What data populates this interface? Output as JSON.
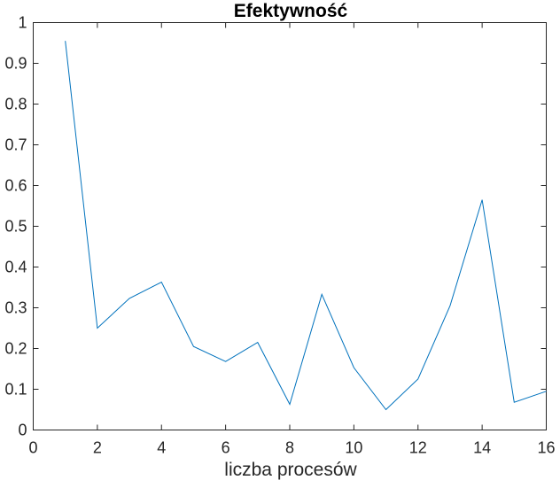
{
  "chart_data": {
    "type": "line",
    "title": "Efektywność",
    "xlabel": "liczba procesów",
    "ylabel": "",
    "xlim": [
      0,
      16
    ],
    "ylim": [
      0,
      1
    ],
    "xticks": [
      0,
      2,
      4,
      6,
      8,
      10,
      12,
      14,
      16
    ],
    "yticks": [
      0,
      0.1,
      0.2,
      0.3,
      0.4,
      0.5,
      0.6,
      0.7,
      0.8,
      0.9,
      1
    ],
    "xtick_labels": [
      "0",
      "2",
      "4",
      "6",
      "8",
      "10",
      "12",
      "14",
      "16"
    ],
    "ytick_labels": [
      "0",
      "0.1",
      "0.2",
      "0.3",
      "0.4",
      "0.5",
      "0.6",
      "0.7",
      "0.8",
      "0.9",
      "1"
    ],
    "grid": false,
    "box": true,
    "series": [
      {
        "color": "#0072BD",
        "x": [
          1,
          2,
          3,
          4,
          5,
          6,
          7,
          8,
          9,
          10,
          11,
          12,
          13,
          14,
          15,
          16
        ],
        "y": [
          0.955,
          0.25,
          0.323,
          0.363,
          0.205,
          0.168,
          0.215,
          0.063,
          0.333,
          0.153,
          0.05,
          0.125,
          0.305,
          0.565,
          0.068,
          0.095
        ]
      }
    ]
  }
}
